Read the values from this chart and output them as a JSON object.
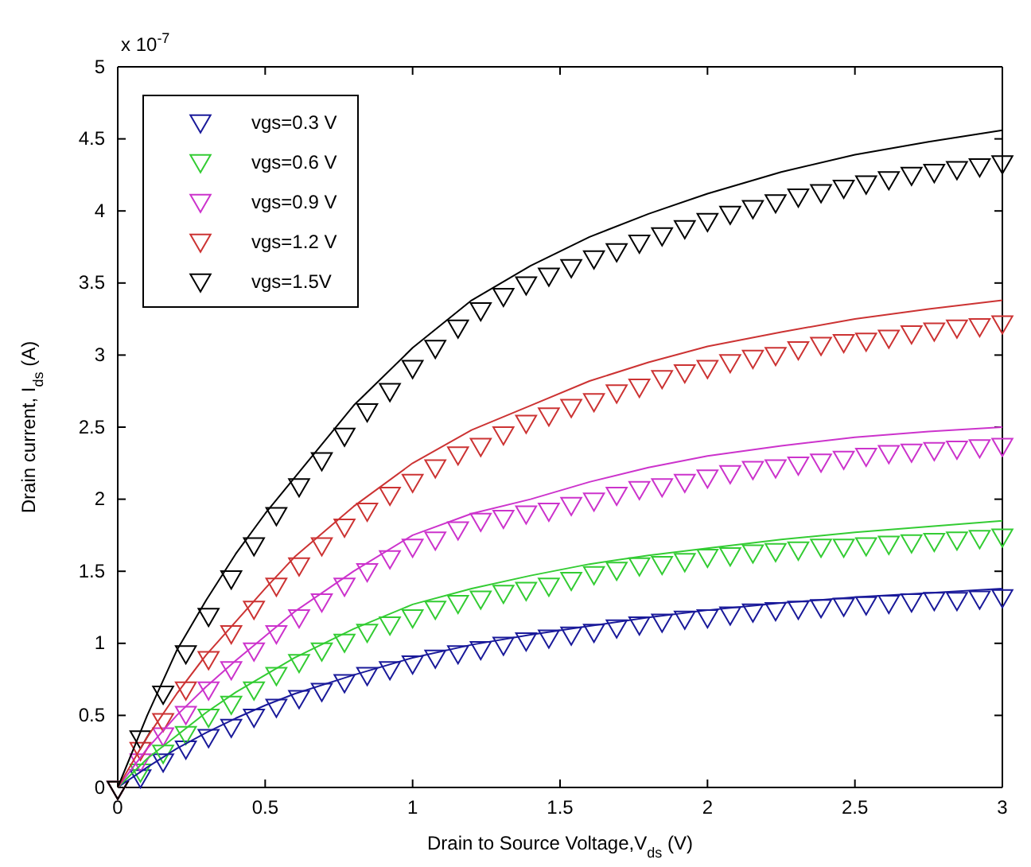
{
  "chart_data": {
    "type": "scatter",
    "xlabel": "Drain to Source Voltage,V$_{ds}$  (V)",
    "ylabel": "Drain current, I$_{ds}$ (A)",
    "annotations": [
      "x 10$^{-7}$"
    ],
    "x": [
      0,
      0.077,
      0.154,
      0.231,
      0.308,
      0.385,
      0.462,
      0.538,
      0.615,
      0.692,
      0.769,
      0.846,
      0.923,
      1,
      1.077,
      1.154,
      1.231,
      1.308,
      1.385,
      1.462,
      1.538,
      1.615,
      1.692,
      1.769,
      1.846,
      1.923,
      2,
      2.077,
      2.154,
      2.231,
      2.308,
      2.385,
      2.462,
      2.538,
      2.615,
      2.692,
      2.769,
      2.846,
      2.923,
      3
    ],
    "series": [
      {
        "name": "vgs=0.3 V",
        "color": "#1a1a9a",
        "values": [
          0,
          0.08,
          0.19,
          0.28,
          0.36,
          0.43,
          0.5,
          0.57,
          0.63,
          0.68,
          0.74,
          0.79,
          0.83,
          0.87,
          0.91,
          0.94,
          0.97,
          1.0,
          1.03,
          1.05,
          1.07,
          1.09,
          1.12,
          1.14,
          1.16,
          1.18,
          1.19,
          1.21,
          1.23,
          1.24,
          1.25,
          1.26,
          1.27,
          1.28,
          1.29,
          1.3,
          1.31,
          1.31,
          1.32,
          1.33
        ]
      },
      {
        "name": "vgs=0.6 V",
        "color": "#33cc33",
        "values": [
          0,
          0.12,
          0.25,
          0.38,
          0.5,
          0.59,
          0.69,
          0.79,
          0.88,
          0.96,
          1.02,
          1.09,
          1.14,
          1.19,
          1.25,
          1.29,
          1.32,
          1.36,
          1.38,
          1.41,
          1.45,
          1.49,
          1.52,
          1.55,
          1.56,
          1.58,
          1.61,
          1.62,
          1.64,
          1.65,
          1.66,
          1.68,
          1.68,
          1.69,
          1.7,
          1.71,
          1.72,
          1.73,
          1.74,
          1.75
        ]
      },
      {
        "name": "vgs=0.9 V",
        "color": "#cc33cc",
        "values": [
          0,
          0.19,
          0.37,
          0.52,
          0.69,
          0.83,
          0.96,
          1.08,
          1.19,
          1.3,
          1.41,
          1.51,
          1.6,
          1.68,
          1.73,
          1.8,
          1.86,
          1.88,
          1.91,
          1.93,
          1.97,
          2,
          2.04,
          2.08,
          2.1,
          2.13,
          2.16,
          2.19,
          2.22,
          2.23,
          2.25,
          2.27,
          2.29,
          2.31,
          2.33,
          2.34,
          2.35,
          2.36,
          2.37,
          2.38
        ]
      },
      {
        "name": "vgs=1.2 V",
        "color": "#cc3333",
        "values": [
          0,
          0.27,
          0.47,
          0.69,
          0.9,
          1.08,
          1.25,
          1.41,
          1.55,
          1.69,
          1.82,
          1.93,
          2.04,
          2.13,
          2.23,
          2.32,
          2.38,
          2.46,
          2.54,
          2.59,
          2.65,
          2.69,
          2.75,
          2.79,
          2.85,
          2.89,
          2.92,
          2.96,
          2.99,
          3.01,
          3.05,
          3.08,
          3.1,
          3.11,
          3.13,
          3.16,
          3.18,
          3.2,
          3.21,
          3.23
        ]
      },
      {
        "name": "vgs=1.5V",
        "color": "#000000",
        "values": [
          0,
          0.35,
          0.66,
          0.94,
          1.2,
          1.46,
          1.69,
          1.9,
          2.1,
          2.28,
          2.45,
          2.62,
          2.76,
          2.92,
          3.06,
          3.2,
          3.32,
          3.42,
          3.5,
          3.56,
          3.62,
          3.68,
          3.73,
          3.79,
          3.84,
          3.89,
          3.94,
          3.99,
          4.03,
          4.07,
          4.11,
          4.14,
          4.17,
          4.2,
          4.23,
          4.26,
          4.28,
          4.3,
          4.32,
          4.34
        ]
      },
      {
        "type": "line",
        "marker": "none",
        "color": "#1a1a9a",
        "x": [
          0,
          0.1,
          0.2,
          0.3,
          0.4,
          0.5,
          0.6,
          0.8,
          1,
          1.2,
          1.4,
          1.6,
          1.8,
          2,
          2.25,
          2.5,
          2.75,
          3
        ],
        "values": [
          0,
          0.14,
          0.27,
          0.38,
          0.48,
          0.57,
          0.65,
          0.78,
          0.9,
          0.99,
          1.06,
          1.12,
          1.18,
          1.23,
          1.28,
          1.32,
          1.35,
          1.38
        ]
      },
      {
        "type": "line",
        "marker": "none",
        "color": "#33cc33",
        "x": [
          0,
          0.1,
          0.2,
          0.3,
          0.4,
          0.5,
          0.6,
          0.8,
          1,
          1.2,
          1.4,
          1.6,
          1.8,
          2,
          2.25,
          2.5,
          2.75,
          3
        ],
        "values": [
          0,
          0.2,
          0.36,
          0.52,
          0.66,
          0.78,
          0.9,
          1.1,
          1.27,
          1.38,
          1.47,
          1.55,
          1.61,
          1.66,
          1.72,
          1.77,
          1.81,
          1.85
        ]
      },
      {
        "type": "line",
        "marker": "none",
        "color": "#cc33cc",
        "x": [
          0,
          0.1,
          0.2,
          0.3,
          0.4,
          0.5,
          0.6,
          0.8,
          1,
          1.2,
          1.4,
          1.6,
          1.8,
          2,
          2.25,
          2.5,
          2.75,
          3
        ],
        "values": [
          0,
          0.27,
          0.5,
          0.7,
          0.88,
          1.05,
          1.22,
          1.5,
          1.75,
          1.9,
          2.0,
          2.12,
          2.22,
          2.3,
          2.37,
          2.43,
          2.47,
          2.5
        ]
      },
      {
        "type": "line",
        "marker": "none",
        "color": "#cc3333",
        "x": [
          0,
          0.1,
          0.2,
          0.3,
          0.4,
          0.5,
          0.6,
          0.8,
          1,
          1.2,
          1.4,
          1.6,
          1.8,
          2,
          2.25,
          2.5,
          2.75,
          3
        ],
        "values": [
          0,
          0.35,
          0.65,
          0.92,
          1.15,
          1.38,
          1.6,
          1.95,
          2.25,
          2.48,
          2.65,
          2.82,
          2.95,
          3.06,
          3.16,
          3.25,
          3.32,
          3.38
        ]
      },
      {
        "type": "line",
        "marker": "none",
        "color": "#000000",
        "x": [
          0,
          0.1,
          0.2,
          0.3,
          0.4,
          0.5,
          0.6,
          0.8,
          1,
          1.2,
          1.4,
          1.6,
          1.8,
          2,
          2.25,
          2.5,
          2.75,
          3
        ],
        "values": [
          0,
          0.5,
          0.95,
          1.3,
          1.62,
          1.9,
          2.15,
          2.65,
          3.05,
          3.38,
          3.62,
          3.82,
          3.98,
          4.12,
          4.27,
          4.39,
          4.48,
          4.56
        ]
      }
    ],
    "marker": "triangle",
    "xlim": [
      0,
      3
    ],
    "xticks": [
      0,
      0.5,
      1,
      1.5,
      2,
      2.5,
      3
    ],
    "ylim": [
      0,
      5
    ],
    "yticks": [
      0,
      0.5,
      1,
      1.5,
      2,
      2.5,
      3,
      3.5,
      4,
      4.5,
      5
    ],
    "grid": false,
    "legend": "top left"
  }
}
